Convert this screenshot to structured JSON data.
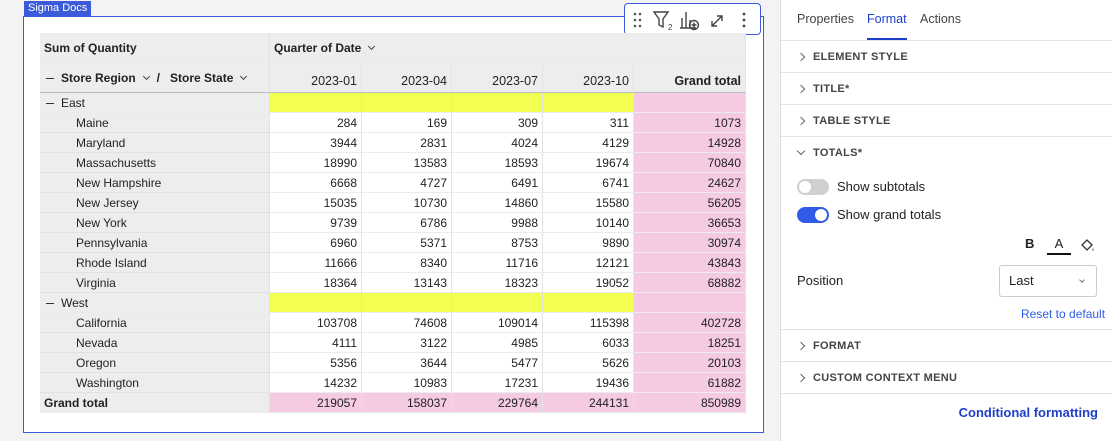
{
  "badge": "Sigma Docs",
  "pivot": {
    "measure": "Sum of Quantity",
    "column_field": "Quarter of Date",
    "row_fields": [
      "Store Region",
      "Store State"
    ],
    "separator": "/",
    "columns": [
      "2023-01",
      "2023-04",
      "2023-07",
      "2023-10",
      "Grand total"
    ],
    "groups": [
      {
        "name": "East",
        "rows": [
          {
            "label": "Maine",
            "values": [
              284,
              169,
              309,
              311,
              1073
            ]
          },
          {
            "label": "Maryland",
            "values": [
              3944,
              2831,
              4024,
              4129,
              14928
            ]
          },
          {
            "label": "Massachusetts",
            "values": [
              18990,
              13583,
              18593,
              19674,
              70840
            ]
          },
          {
            "label": "New Hampshire",
            "values": [
              6668,
              4727,
              6491,
              6741,
              24627
            ]
          },
          {
            "label": "New Jersey",
            "values": [
              15035,
              10730,
              14860,
              15580,
              56205
            ]
          },
          {
            "label": "New York",
            "values": [
              9739,
              6786,
              9988,
              10140,
              36653
            ]
          },
          {
            "label": "Pennsylvania",
            "values": [
              6960,
              5371,
              8753,
              9890,
              30974
            ]
          },
          {
            "label": "Rhode Island",
            "values": [
              11666,
              8340,
              11716,
              12121,
              43843
            ]
          },
          {
            "label": "Virginia",
            "values": [
              18364,
              13143,
              18323,
              19052,
              68882
            ]
          }
        ]
      },
      {
        "name": "West",
        "rows": [
          {
            "label": "California",
            "values": [
              103708,
              74608,
              109014,
              115398,
              402728
            ]
          },
          {
            "label": "Nevada",
            "values": [
              4111,
              3122,
              4985,
              6033,
              18251
            ]
          },
          {
            "label": "Oregon",
            "values": [
              5356,
              3644,
              5477,
              5626,
              20103
            ]
          },
          {
            "label": "Washington",
            "values": [
              14232,
              10983,
              17231,
              19436,
              61882
            ]
          }
        ]
      }
    ],
    "grand_total": {
      "label": "Grand total",
      "values": [
        219057,
        158037,
        229764,
        244131,
        850989
      ]
    }
  },
  "panel": {
    "tabs": [
      {
        "label": "Properties",
        "active": false
      },
      {
        "label": "Format",
        "active": true
      },
      {
        "label": "Actions",
        "active": false
      }
    ],
    "sections_top": [
      "ELEMENT STYLE",
      "TITLE*",
      "TABLE STYLE"
    ],
    "open_section": "TOTALS*",
    "toggles": [
      {
        "label": "Show subtotals",
        "on": false
      },
      {
        "label": "Show grand totals",
        "on": true
      }
    ],
    "format_buttons": [
      "B",
      "A"
    ],
    "position_label": "Position",
    "position_value": "Last",
    "reset": "Reset to default",
    "sections_bottom": [
      "FORMAT",
      "CUSTOM CONTEXT MENU"
    ],
    "footer_link": "Conditional formatting"
  }
}
